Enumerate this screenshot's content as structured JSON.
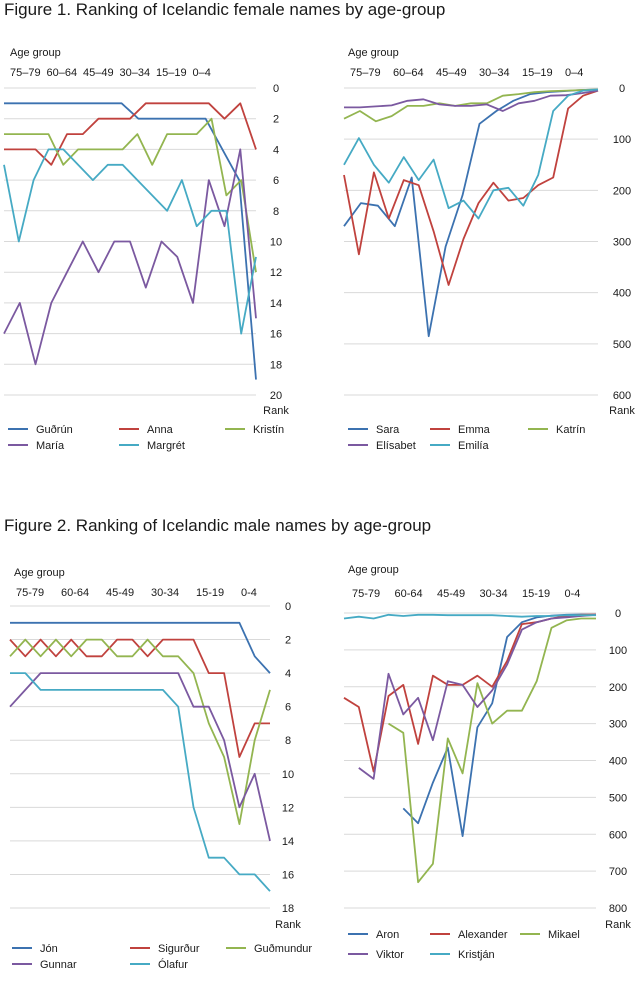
{
  "figures": [
    {
      "title": "Figure 1. Ranking of Icelandic female names by age-group"
    },
    {
      "title": "Figure 2. Ranking of Icelandic male names by age-group"
    }
  ],
  "chart_data": [
    {
      "type": "line",
      "figure": 1,
      "xlabel": "Age group",
      "ylabel": "Rank",
      "x_tick_labels": [
        "75–79",
        "60–64",
        "45–49",
        "30–34",
        "15–19",
        "0–4"
      ],
      "ylim": [
        0,
        20
      ],
      "y_ticks": [
        0,
        2,
        4,
        6,
        8,
        10,
        12,
        14,
        16,
        18,
        20
      ],
      "y_inverted": true,
      "grid": true,
      "legend": "bottom",
      "series": [
        {
          "name": "Guðrún",
          "color": "#3c72b0",
          "values": [
            1,
            1,
            1,
            1,
            1,
            1,
            1,
            1,
            2,
            2,
            2,
            2,
            2,
            4,
            6,
            19
          ]
        },
        {
          "name": "Anna",
          "color": "#c0423e",
          "values": [
            4,
            4,
            4,
            5,
            3,
            3,
            2,
            2,
            2,
            1,
            1,
            1,
            1,
            1,
            2,
            1,
            4
          ]
        },
        {
          "name": "Kristín",
          "color": "#93b550",
          "values": [
            3,
            3,
            3,
            3,
            5,
            4,
            4,
            4,
            4,
            3,
            5,
            3,
            3,
            3,
            2,
            7,
            6,
            12
          ]
        },
        {
          "name": "María",
          "color": "#7b59a0",
          "values": [
            16,
            14,
            18,
            14,
            12,
            10,
            12,
            10,
            10,
            13,
            10,
            11,
            14,
            6,
            9,
            4,
            15
          ]
        },
        {
          "name": "Margrét",
          "color": "#46aac4",
          "values": [
            5,
            10,
            6,
            4,
            4,
            5,
            6,
            5,
            5,
            6,
            7,
            8,
            6,
            9,
            8,
            8,
            16,
            11
          ]
        }
      ]
    },
    {
      "type": "line",
      "figure": 1,
      "xlabel": "Age group",
      "ylabel": "Rank",
      "x_tick_labels": [
        "75–79",
        "60–64",
        "45–49",
        "30–34",
        "15–19",
        "0–4"
      ],
      "ylim": [
        0,
        600
      ],
      "y_ticks": [
        0,
        100,
        200,
        300,
        400,
        500,
        600
      ],
      "y_inverted": true,
      "grid": true,
      "legend": "bottom",
      "series": [
        {
          "name": "Sara",
          "color": "#3c72b0",
          "values": [
            270,
            225,
            230,
            270,
            175,
            485,
            310,
            210,
            70,
            45,
            25,
            12,
            8,
            6,
            4,
            3
          ]
        },
        {
          "name": "Emma",
          "color": "#c0423e",
          "values": [
            170,
            325,
            165,
            255,
            180,
            190,
            280,
            385,
            295,
            225,
            185,
            220,
            215,
            190,
            175,
            40,
            15,
            5
          ]
        },
        {
          "name": "Katrín",
          "color": "#93b550",
          "values": [
            60,
            45,
            65,
            55,
            35,
            35,
            30,
            35,
            30,
            30,
            15,
            12,
            8,
            6,
            5,
            4,
            3
          ]
        },
        {
          "name": "Elísabet",
          "color": "#7b59a0",
          "values": [
            38,
            38,
            36,
            34,
            25,
            22,
            32,
            35,
            35,
            32,
            45,
            30,
            25,
            15,
            14,
            10,
            5
          ]
        },
        {
          "name": "Emilía",
          "color": "#46aac4",
          "values": [
            150,
            98,
            150,
            185,
            135,
            180,
            140,
            235,
            220,
            255,
            200,
            195,
            230,
            170,
            45,
            15,
            5,
            3
          ]
        }
      ]
    },
    {
      "type": "line",
      "figure": 2,
      "xlabel": "Age group",
      "ylabel": "Rank",
      "x_tick_labels": [
        "75-79",
        "60-64",
        "45-49",
        "30-34",
        "15-19",
        "0-4"
      ],
      "ylim": [
        0,
        18
      ],
      "y_ticks": [
        0,
        2,
        4,
        6,
        8,
        10,
        12,
        14,
        16,
        18
      ],
      "y_inverted": true,
      "grid": true,
      "legend": "bottom",
      "series": [
        {
          "name": "Jón",
          "color": "#3c72b0",
          "values": [
            1,
            1,
            1,
            1,
            1,
            1,
            1,
            1,
            1,
            1,
            1,
            1,
            1,
            1,
            1,
            1,
            3,
            4
          ]
        },
        {
          "name": "Sigurður",
          "color": "#c0423e",
          "values": [
            2,
            3,
            2,
            3,
            2,
            3,
            3,
            2,
            2,
            3,
            2,
            2,
            2,
            4,
            4,
            9,
            7,
            7
          ]
        },
        {
          "name": "Guðmundur",
          "color": "#93b550",
          "values": [
            3,
            2,
            3,
            2,
            3,
            2,
            2,
            3,
            3,
            2,
            3,
            3,
            4,
            7,
            9,
            13,
            8,
            5
          ]
        },
        {
          "name": "Gunnar",
          "color": "#7b59a0",
          "values": [
            6,
            5,
            4,
            4,
            4,
            4,
            4,
            4,
            4,
            4,
            4,
            4,
            6,
            6,
            8,
            12,
            10,
            14
          ]
        },
        {
          "name": "Ólafur",
          "color": "#46aac4",
          "values": [
            4,
            4,
            5,
            5,
            5,
            5,
            5,
            5,
            5,
            5,
            5,
            6,
            12,
            15,
            15,
            16,
            16,
            17
          ]
        }
      ]
    },
    {
      "type": "line",
      "figure": 2,
      "xlabel": "Age group",
      "ylabel": "Rank",
      "x_tick_labels": [
        "75-79",
        "60-64",
        "45-49",
        "30-34",
        "15-19",
        "0-4"
      ],
      "ylim": [
        0,
        800
      ],
      "y_ticks": [
        0,
        100,
        200,
        300,
        400,
        500,
        600,
        700,
        800
      ],
      "y_inverted": true,
      "grid": true,
      "legend": "bottom",
      "series": [
        {
          "name": "Aron",
          "color": "#3c72b0",
          "values": [
            null,
            null,
            null,
            null,
            530,
            570,
            460,
            365,
            605,
            310,
            245,
            65,
            25,
            12,
            7,
            5,
            4,
            5
          ]
        },
        {
          "name": "Alexander",
          "color": "#c0423e",
          "values": [
            230,
            255,
            430,
            225,
            195,
            355,
            170,
            195,
            195,
            170,
            200,
            130,
            30,
            25,
            15,
            8,
            5,
            4
          ]
        },
        {
          "name": "Mikael",
          "color": "#93b550",
          "values": [
            null,
            null,
            null,
            300,
            325,
            730,
            680,
            340,
            435,
            190,
            300,
            265,
            265,
            185,
            40,
            20,
            15,
            15
          ]
        },
        {
          "name": "Viktor",
          "color": "#7b59a0",
          "values": [
            null,
            420,
            450,
            165,
            275,
            230,
            345,
            185,
            195,
            255,
            210,
            140,
            45,
            25,
            15,
            12,
            8,
            5
          ]
        },
        {
          "name": "Kristján",
          "color": "#46aac4",
          "values": [
            15,
            10,
            15,
            5,
            8,
            5,
            5,
            6,
            6,
            6,
            6,
            8,
            10,
            8,
            8,
            6,
            6,
            6
          ]
        }
      ]
    }
  ]
}
